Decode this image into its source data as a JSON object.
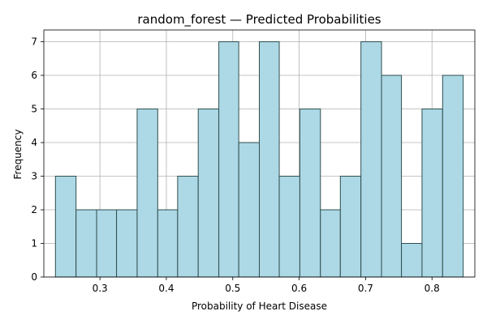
{
  "chart_data": {
    "type": "bar",
    "title": "random_forest — Predicted Probabilities",
    "xlabel": "Probability of Heart Disease",
    "ylabel": "Frequency",
    "xlim": [
      0.2155,
      0.8645
    ],
    "ylim": [
      0,
      7.35
    ],
    "xticks": [
      "0.3",
      "0.4",
      "0.5",
      "0.6",
      "0.7",
      "0.8"
    ],
    "yticks": [
      "0",
      "1",
      "2",
      "3",
      "4",
      "5",
      "6",
      "7"
    ],
    "grid": true,
    "bin_edges": [
      0.233,
      0.264,
      0.295,
      0.325,
      0.356,
      0.387,
      0.417,
      0.448,
      0.479,
      0.509,
      0.54,
      0.57,
      0.601,
      0.632,
      0.662,
      0.693,
      0.724,
      0.754,
      0.785,
      0.816,
      0.847
    ],
    "values": [
      3,
      2,
      2,
      2,
      5,
      2,
      3,
      5,
      7,
      4,
      7,
      3,
      5,
      2,
      3,
      7,
      6,
      1,
      5,
      6
    ],
    "bar_color": "#add8e6",
    "edge_color": "#2f4f4f",
    "grid_color": "#b0b0b0"
  }
}
